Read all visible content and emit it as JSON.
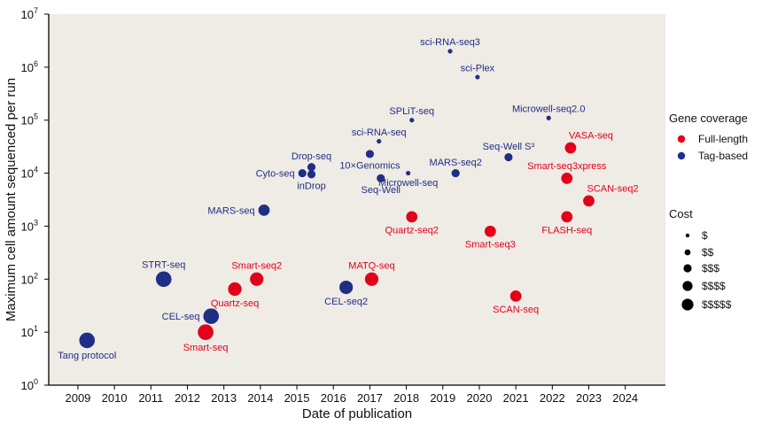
{
  "chart_data": {
    "type": "scatter",
    "title": "",
    "xlabel": "Date of publication",
    "ylabel": "Maximum cell amount sequenced per run",
    "x_ticks": [
      "2009",
      "2010",
      "2011",
      "2012",
      "2013",
      "2014",
      "2015",
      "2016",
      "2017",
      "2018",
      "2019",
      "2020",
      "2021",
      "2022",
      "2023",
      "2024"
    ],
    "xlim": [
      2008.2,
      2025.1
    ],
    "y_scale": "log",
    "ylim": [
      1,
      10000000
    ],
    "y_ticks": [
      {
        "value": 1,
        "base": "10",
        "exp": "0"
      },
      {
        "value": 10,
        "base": "10",
        "exp": "1"
      },
      {
        "value": 100,
        "base": "10",
        "exp": "2"
      },
      {
        "value": 1000,
        "base": "10",
        "exp": "3"
      },
      {
        "value": 10000,
        "base": "10",
        "exp": "4"
      },
      {
        "value": 100000,
        "base": "10",
        "exp": "5"
      },
      {
        "value": 1000000,
        "base": "10",
        "exp": "6"
      },
      {
        "value": 10000000,
        "base": "10",
        "exp": "7"
      }
    ],
    "grid": false,
    "background": "#efebe5",
    "legend": {
      "placement": "right",
      "coverage_title": "Gene coverage",
      "coverage": [
        {
          "label": "Full-length",
          "key": "full",
          "color": "#e2001a"
        },
        {
          "label": "Tag-based",
          "key": "tag",
          "color": "#1f2f86"
        }
      ],
      "cost_title": "Cost",
      "cost": [
        {
          "label": "$",
          "level": 1
        },
        {
          "label": "$$",
          "level": 2
        },
        {
          "label": "$$$",
          "level": 3
        },
        {
          "label": "$$$$",
          "level": 4
        },
        {
          "label": "$$$$$",
          "level": 5
        }
      ]
    },
    "points": [
      {
        "name": "Tang protocol",
        "x": 2009.25,
        "y": 7,
        "coverage": "tag",
        "cost": 5,
        "label_pos": "below"
      },
      {
        "name": "STRT-seq",
        "x": 2011.35,
        "y": 100,
        "coverage": "tag",
        "cost": 5,
        "label_pos": "above"
      },
      {
        "name": "Smart-seq",
        "x": 2012.5,
        "y": 10,
        "coverage": "full",
        "cost": 5,
        "label_pos": "below"
      },
      {
        "name": "CEL-seq",
        "x": 2012.65,
        "y": 20,
        "coverage": "tag",
        "cost": 5,
        "label_pos": "left"
      },
      {
        "name": "Quartz-seq",
        "x": 2013.3,
        "y": 65,
        "coverage": "full",
        "cost": 4,
        "label_pos": "below"
      },
      {
        "name": "Smart-seq2",
        "x": 2013.9,
        "y": 100,
        "coverage": "full",
        "cost": 4,
        "label_pos": "above"
      },
      {
        "name": "MARS-seq",
        "x": 2014.1,
        "y": 2000,
        "coverage": "tag",
        "cost": 3,
        "label_pos": "left"
      },
      {
        "name": "Cyto-seq",
        "x": 2015.15,
        "y": 10000,
        "coverage": "tag",
        "cost": 2,
        "label_pos": "left"
      },
      {
        "name": "Drop-seq",
        "x": 2015.4,
        "y": 13000,
        "coverage": "tag",
        "cost": 2,
        "label_pos": "above"
      },
      {
        "name": "inDrop",
        "x": 2015.4,
        "y": 9500,
        "coverage": "tag",
        "cost": 2,
        "label_pos": "below"
      },
      {
        "name": "CEL-seq2",
        "x": 2016.35,
        "y": 70,
        "coverage": "tag",
        "cost": 4,
        "label_pos": "below"
      },
      {
        "name": "10×Genomics",
        "x": 2017.0,
        "y": 23000,
        "coverage": "tag",
        "cost": 2,
        "label_pos": "below"
      },
      {
        "name": "sci-RNA-seq",
        "x": 2017.25,
        "y": 40000,
        "coverage": "tag",
        "cost": 1,
        "label_pos": "above"
      },
      {
        "name": "MATQ-seq",
        "x": 2017.05,
        "y": 100,
        "coverage": "full",
        "cost": 4,
        "label_pos": "above"
      },
      {
        "name": "Seq-Well",
        "x": 2017.3,
        "y": 8000,
        "coverage": "tag",
        "cost": 2,
        "label_pos": "below"
      },
      {
        "name": "SPLiT-seq",
        "x": 2018.15,
        "y": 100000,
        "coverage": "tag",
        "cost": 1,
        "label_pos": "above"
      },
      {
        "name": "Microwell-seq",
        "x": 2018.05,
        "y": 10000,
        "coverage": "tag",
        "cost": 1,
        "label_pos": "below"
      },
      {
        "name": "Quartz-seq2",
        "x": 2018.15,
        "y": 1500,
        "coverage": "full",
        "cost": 3,
        "label_pos": "below"
      },
      {
        "name": "sci-RNA-seq3",
        "x": 2019.2,
        "y": 2000000,
        "coverage": "tag",
        "cost": 1,
        "label_pos": "above"
      },
      {
        "name": "MARS-seq2",
        "x": 2019.35,
        "y": 10000,
        "coverage": "tag",
        "cost": 2,
        "label_pos": "above"
      },
      {
        "name": "sci-Plex",
        "x": 2019.95,
        "y": 650000,
        "coverage": "tag",
        "cost": 1,
        "label_pos": "above"
      },
      {
        "name": "Smart-seq3",
        "x": 2020.3,
        "y": 800,
        "coverage": "full",
        "cost": 3,
        "label_pos": "below"
      },
      {
        "name": "Seq-Well S³",
        "x": 2020.8,
        "y": 20000,
        "coverage": "tag",
        "cost": 2,
        "label_pos": "above"
      },
      {
        "name": "SCAN-seq",
        "x": 2021.0,
        "y": 48,
        "coverage": "full",
        "cost": 3,
        "label_pos": "below"
      },
      {
        "name": "Microwell-seq2.0",
        "x": 2021.9,
        "y": 110000,
        "coverage": "tag",
        "cost": 1,
        "label_pos": "above"
      },
      {
        "name": "VASA-seq",
        "x": 2022.5,
        "y": 30000,
        "coverage": "full",
        "cost": 3,
        "label_pos": "above-right"
      },
      {
        "name": "Smart-seq3xpress",
        "x": 2022.4,
        "y": 8000,
        "coverage": "full",
        "cost": 3,
        "label_pos": "above"
      },
      {
        "name": "FLASH-seq",
        "x": 2022.4,
        "y": 1500,
        "coverage": "full",
        "cost": 3,
        "label_pos": "below"
      },
      {
        "name": "SCAN-seq2",
        "x": 2023.0,
        "y": 3000,
        "coverage": "full",
        "cost": 3,
        "label_pos": "above-right"
      }
    ]
  }
}
